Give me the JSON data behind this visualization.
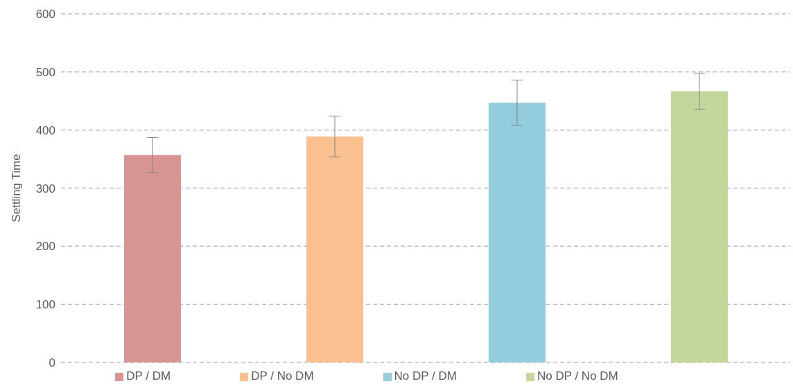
{
  "chart_data": {
    "type": "bar",
    "ylabel": "Settling Time",
    "categories": [
      null,
      null,
      null,
      null
    ],
    "series": [
      {
        "name": "DP / DM",
        "color": "#d99594",
        "values": [
          357,
          null,
          null,
          null
        ],
        "errors": [
          30,
          null,
          null,
          null
        ]
      },
      {
        "name": "DP / No DM",
        "color": "#fac090",
        "values": [
          null,
          389,
          null,
          null
        ],
        "errors": [
          null,
          35,
          null,
          null
        ]
      },
      {
        "name": "No DP / DM",
        "color": "#93cddd",
        "values": [
          null,
          null,
          447,
          null
        ],
        "errors": [
          null,
          null,
          39,
          null
        ]
      },
      {
        "name": "No DP / No DM",
        "color": "#c3d69b",
        "values": [
          null,
          null,
          null,
          467
        ],
        "errors": [
          null,
          null,
          null,
          31
        ]
      }
    ],
    "ylim": [
      0,
      600
    ],
    "yticks": [
      0,
      100,
      200,
      300,
      400,
      500,
      600
    ],
    "grid": "y",
    "legend": "bottom"
  }
}
